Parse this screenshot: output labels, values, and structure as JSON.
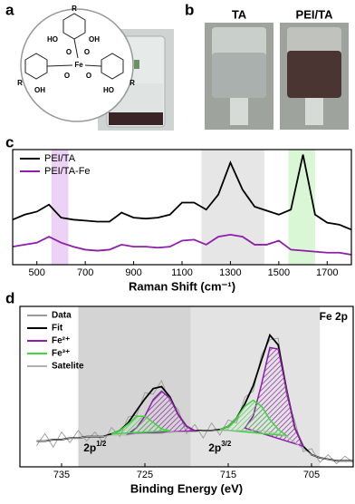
{
  "panels": {
    "labels": [
      "a",
      "b",
      "c",
      "d"
    ]
  },
  "photo_b": {
    "captions": [
      "TA",
      "PEI/TA"
    ]
  },
  "structure": {
    "atoms": [
      "R",
      "HO",
      "OH",
      "O",
      "O",
      "Fe",
      "O",
      "O",
      "R",
      "OH",
      "HO",
      "R"
    ]
  },
  "chart_data": [
    {
      "type": "line",
      "xlabel": "Raman Shift (cm⁻¹)",
      "x": [
        400,
        450,
        500,
        550,
        600,
        650,
        700,
        750,
        800,
        850,
        900,
        950,
        1000,
        1050,
        1100,
        1150,
        1200,
        1250,
        1300,
        1350,
        1400,
        1450,
        1500,
        1550,
        1600,
        1650,
        1700,
        1750,
        1800
      ],
      "xlim": [
        400,
        1800
      ],
      "xticks": [
        500,
        700,
        900,
        1100,
        1300,
        1500,
        1700
      ],
      "ylim": [
        0,
        115
      ],
      "legend": "upper left",
      "highlights": [
        {
          "range": [
            560,
            630
          ],
          "color": "#ecd2f5"
        },
        {
          "range": [
            1180,
            1440
          ],
          "color": "#e6e6e6"
        },
        {
          "range": [
            1540,
            1650
          ],
          "color": "#d9f7d4"
        }
      ],
      "series": [
        {
          "name": "PEI/TA",
          "color": "#000000",
          "values": [
            45,
            50,
            53,
            60,
            47,
            45,
            44,
            43,
            43,
            52,
            47,
            46,
            47,
            50,
            62,
            62,
            55,
            70,
            102,
            75,
            58,
            54,
            50,
            55,
            110,
            50,
            42,
            40,
            35
          ]
        },
        {
          "name": "PEI/TA-Fe",
          "color": "#8e1fa8",
          "values": [
            18,
            20,
            22,
            28,
            22,
            18,
            15,
            14,
            15,
            20,
            18,
            18,
            17,
            18,
            24,
            25,
            20,
            28,
            30,
            28,
            20,
            20,
            24,
            15,
            14,
            13,
            12,
            12,
            10
          ]
        }
      ]
    },
    {
      "type": "line",
      "xlabel": "Binding Energy (eV)",
      "x": [
        738,
        737,
        736,
        735,
        734,
        733,
        732,
        731,
        730,
        729,
        728,
        727,
        726,
        725,
        724,
        723,
        722,
        721,
        720,
        719,
        718,
        717,
        716,
        715,
        714,
        713,
        712,
        711,
        710,
        709,
        708,
        707,
        706,
        705,
        704,
        703,
        702,
        701,
        700
      ],
      "xlim": [
        740,
        700
      ],
      "xticks": [
        735,
        725,
        715,
        705
      ],
      "ylim": [
        -2,
        104
      ],
      "legend": "upper left",
      "highlights": [
        {
          "range": [
            733,
            719.5
          ],
          "color": "#d4d4d4"
        },
        {
          "range": [
            719.5,
            704
          ],
          "color": "#e3e3e3"
        }
      ],
      "annotations": [
        {
          "text": "Fe 2p"
        },
        {
          "base": "2p",
          "sup": "1/2"
        },
        {
          "base": "2p",
          "sup": "3/2"
        }
      ],
      "series": [
        {
          "name": "Data",
          "color": "#9a9a9a",
          "values": [
            12,
            20,
            11,
            21,
            14,
            22,
            15,
            21,
            14,
            24,
            18,
            31,
            32,
            47,
            46,
            55,
            41,
            36,
            20,
            26,
            17,
            27,
            19,
            29,
            27,
            44,
            48,
            72,
            82,
            83,
            45,
            28,
            8,
            10,
            1,
            6,
            0,
            5,
            1
          ]
        },
        {
          "name": "Fit",
          "color": "#000000",
          "values": [
            15,
            15,
            16,
            16,
            17,
            17,
            18,
            18,
            18,
            19.8,
            22,
            27.1,
            35.2,
            42.9,
            49.7,
            51,
            44.2,
            32.5,
            24.8,
            21.8,
            22,
            22,
            22.6,
            24.7,
            30.2,
            39.6,
            51.6,
            68.6,
            85,
            78.5,
            49.2,
            23.6,
            11.6,
            6,
            4,
            3,
            2,
            2,
            2
          ]
        },
        {
          "name": "Fe²⁺",
          "color": "#8e1fa8",
          "fill": "hatch",
          "values": [
            null,
            null,
            null,
            null,
            null,
            null,
            null,
            null,
            null,
            null,
            null,
            19.8,
            23.8,
            31.5,
            42.4,
            48,
            43.4,
            32.5,
            24.8,
            21.8,
            null,
            null,
            null,
            null,
            null,
            23.6,
            31.6,
            52.6,
            76.8,
            75.8,
            48.6,
            23.6,
            11.6,
            null,
            null,
            null,
            null,
            null,
            null
          ]
        },
        {
          "name": "Fe³⁺",
          "color": "#3fd63f",
          "fill": "hatch",
          "values": [
            null,
            null,
            null,
            null,
            null,
            null,
            null,
            null,
            null,
            19.8,
            22,
            26.3,
            31.4,
            31.4,
            27.3,
            23,
            21.8,
            null,
            null,
            null,
            null,
            null,
            22.6,
            24.7,
            30.2,
            38,
            42,
            38,
            29.2,
            22.7,
            18.6,
            null,
            null,
            null,
            null,
            null,
            null,
            null,
            null
          ]
        },
        {
          "name": "Satelite",
          "color": "#b0b0b0",
          "values": [
            15,
            15,
            16,
            16,
            17,
            17,
            18,
            18,
            18,
            19,
            19,
            19,
            20,
            20,
            20,
            20,
            21,
            21,
            21,
            21,
            22,
            22,
            22,
            22,
            22,
            22,
            22,
            22,
            21,
            20,
            18,
            14,
            10,
            6,
            4,
            3,
            2,
            2,
            2
          ]
        }
      ]
    }
  ]
}
